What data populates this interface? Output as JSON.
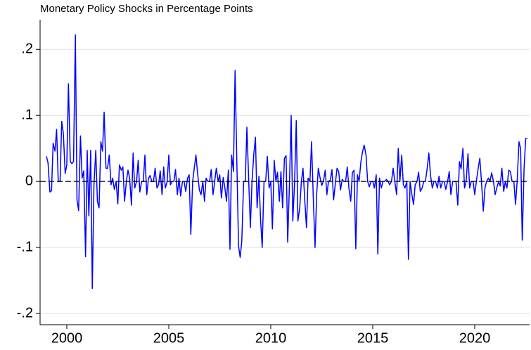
{
  "chart_data": {
    "type": "line",
    "title": "Monetary Policy Shocks in Percentage Points",
    "x": [
      1999,
      1999.08,
      1999.17,
      1999.25,
      1999.33,
      1999.42,
      1999.5,
      1999.58,
      1999.67,
      1999.75,
      1999.83,
      1999.92,
      2000,
      2000.08,
      2000.17,
      2000.25,
      2000.33,
      2000.42,
      2000.5,
      2000.58,
      2000.67,
      2000.75,
      2000.83,
      2000.92,
      2001,
      2001.08,
      2001.17,
      2001.25,
      2001.33,
      2001.42,
      2001.5,
      2001.58,
      2001.67,
      2001.75,
      2001.83,
      2001.92,
      2002,
      2002.08,
      2002.17,
      2002.25,
      2002.33,
      2002.42,
      2002.5,
      2002.58,
      2002.67,
      2002.75,
      2002.83,
      2002.92,
      2003,
      2003.08,
      2003.17,
      2003.25,
      2003.33,
      2003.42,
      2003.5,
      2003.58,
      2003.67,
      2003.75,
      2003.83,
      2003.92,
      2004,
      2004.08,
      2004.17,
      2004.25,
      2004.33,
      2004.42,
      2004.5,
      2004.58,
      2004.67,
      2004.75,
      2004.83,
      2004.92,
      2005,
      2005.08,
      2005.17,
      2005.25,
      2005.33,
      2005.42,
      2005.5,
      2005.58,
      2005.67,
      2005.75,
      2005.83,
      2005.92,
      2006,
      2006.08,
      2006.17,
      2006.25,
      2006.33,
      2006.42,
      2006.5,
      2006.58,
      2006.67,
      2006.75,
      2006.83,
      2006.92,
      2007,
      2007.08,
      2007.17,
      2007.25,
      2007.33,
      2007.42,
      2007.5,
      2007.58,
      2007.67,
      2007.75,
      2007.83,
      2007.92,
      2008,
      2008.08,
      2008.17,
      2008.25,
      2008.33,
      2008.42,
      2008.5,
      2008.58,
      2008.67,
      2008.75,
      2008.83,
      2008.92,
      2009,
      2009.08,
      2009.17,
      2009.25,
      2009.33,
      2009.42,
      2009.5,
      2009.58,
      2009.67,
      2009.75,
      2009.83,
      2009.92,
      2010,
      2010.08,
      2010.17,
      2010.25,
      2010.33,
      2010.42,
      2010.5,
      2010.58,
      2010.67,
      2010.75,
      2010.83,
      2010.92,
      2011,
      2011.08,
      2011.17,
      2011.25,
      2011.33,
      2011.42,
      2011.5,
      2011.58,
      2011.67,
      2011.75,
      2011.83,
      2011.92,
      2012,
      2012.08,
      2012.17,
      2012.25,
      2012.33,
      2012.42,
      2012.5,
      2012.58,
      2012.67,
      2012.75,
      2012.83,
      2012.92,
      2013,
      2013.08,
      2013.17,
      2013.25,
      2013.33,
      2013.42,
      2013.5,
      2013.58,
      2013.67,
      2013.75,
      2013.83,
      2013.92,
      2014,
      2014.08,
      2014.17,
      2014.25,
      2014.33,
      2014.42,
      2014.5,
      2014.58,
      2014.67,
      2014.75,
      2014.83,
      2014.92,
      2015,
      2015.08,
      2015.17,
      2015.25,
      2015.33,
      2015.42,
      2015.5,
      2015.58,
      2015.67,
      2015.75,
      2015.83,
      2015.92,
      2016,
      2016.08,
      2016.17,
      2016.25,
      2016.33,
      2016.42,
      2016.5,
      2016.58,
      2016.67,
      2016.75,
      2016.83,
      2016.92,
      2017,
      2017.08,
      2017.17,
      2017.25,
      2017.33,
      2017.42,
      2017.5,
      2017.58,
      2017.67,
      2017.75,
      2017.83,
      2017.92,
      2018,
      2018.08,
      2018.17,
      2018.25,
      2018.33,
      2018.42,
      2018.5,
      2018.58,
      2018.67,
      2018.75,
      2018.83,
      2018.92,
      2019,
      2019.08,
      2019.17,
      2019.25,
      2019.33,
      2019.42,
      2019.5,
      2019.58,
      2019.67,
      2019.75,
      2019.83,
      2019.92,
      2020,
      2020.08,
      2020.17,
      2020.25,
      2020.33,
      2020.42,
      2020.5,
      2020.58,
      2020.67,
      2020.75,
      2020.83,
      2020.92,
      2021,
      2021.08,
      2021.17,
      2021.25,
      2021.33,
      2021.42,
      2021.5,
      2021.58,
      2021.67,
      2021.75,
      2021.83,
      2021.92,
      2022,
      2022.08,
      2022.17,
      2022.25,
      2022.33,
      2022.42,
      2022.5,
      2022.58
    ],
    "values": [
      0.038,
      0.028,
      -0.016,
      -0.014,
      0.058,
      0.046,
      0.079,
      0.0,
      0.0,
      0.091,
      0.073,
      0.012,
      0.025,
      0.148,
      0.03,
      0.027,
      0.03,
      0.222,
      -0.028,
      -0.044,
      0.069,
      0.005,
      0.016,
      -0.114,
      0.047,
      -0.052,
      0.047,
      -0.162,
      -0.006,
      0.047,
      -0.03,
      -0.04,
      0.06,
      0.046,
      0.105,
      0.02,
      0.02,
      0.04,
      -0.005,
      0.005,
      -0.012,
      0.0,
      -0.034,
      0.025,
      0.017,
      0.022,
      -0.03,
      0.0,
      0.017,
      0.005,
      -0.036,
      0.043,
      -0.01,
      0.0,
      0.032,
      -0.016,
      0.0,
      0.0,
      0.04,
      -0.02,
      0.004,
      0.009,
      0.0,
      0.0,
      0.02,
      -0.01,
      -0.005,
      0.016,
      -0.02,
      0.022,
      -0.01,
      0.0,
      0.04,
      -0.005,
      0.0,
      0.0,
      0.018,
      -0.02,
      0.005,
      -0.022,
      0.0,
      0.0,
      -0.015,
      0.005,
      0.01,
      -0.08,
      0.0,
      0.02,
      0.04,
      0.01,
      -0.013,
      -0.02,
      0.0,
      -0.03,
      0.005,
      0.0,
      0.0,
      0.018,
      -0.02,
      0.0,
      0.02,
      0.0,
      0.01,
      -0.025,
      0.006,
      -0.01,
      -0.03,
      0.017,
      -0.103,
      0.04,
      0.015,
      0.168,
      0.04,
      -0.098,
      -0.115,
      -0.09,
      0.0,
      0.0,
      0.082,
      0.0,
      -0.07,
      0.0,
      0.042,
      0.067,
      -0.04,
      0.008,
      -0.058,
      -0.1,
      0.0,
      0.0,
      0.038,
      -0.01,
      0.0,
      -0.072,
      0.032,
      0.0,
      0.014,
      -0.03,
      0.015,
      -0.04,
      0.035,
      0.039,
      -0.092,
      0.0,
      0.1,
      -0.06,
      0.0,
      0.092,
      -0.06,
      -0.04,
      0.0,
      0.02,
      -0.03,
      -0.07,
      0.005,
      0.0,
      0.06,
      -0.02,
      -0.1,
      -0.02,
      0.02,
      0.005,
      -0.006,
      0.0,
      0.017,
      -0.02,
      0.0,
      0.002,
      0.018,
      -0.028,
      -0.002,
      0.02,
      0.015,
      -0.013,
      0.003,
      0.0,
      0.0,
      0.022,
      -0.01,
      -0.03,
      0.013,
      0.017,
      -0.102,
      0.01,
      0.0,
      0.03,
      0.045,
      0.055,
      0.04,
      0.0,
      -0.008,
      0.0,
      0.0,
      -0.01,
      0.01,
      -0.11,
      0.005,
      -0.01,
      0.0,
      0.0,
      0.003,
      0.0,
      -0.005,
      0.0,
      0.02,
      0.0,
      -0.02,
      0.05,
      0.0,
      0.04,
      -0.005,
      -0.01,
      0.0,
      -0.118,
      0.0,
      -0.02,
      -0.035,
      -0.005,
      0.0,
      0.014,
      -0.015,
      -0.01,
      0.0,
      0.0,
      0.02,
      0.043,
      0.01,
      -0.01,
      0.0,
      0.0,
      -0.01,
      0.008,
      -0.01,
      0.0,
      0.0,
      -0.012,
      0.0,
      0.015,
      -0.02,
      0.0,
      0.0,
      0.0,
      -0.036,
      0.03,
      0.019,
      0.05,
      -0.01,
      0.0,
      0.042,
      -0.01,
      0.0,
      0.0,
      -0.02,
      0.0,
      0.02,
      0.035,
      0.0,
      -0.045,
      -0.01,
      0.0,
      0.005,
      0.0,
      0.013,
      0.0,
      -0.02,
      -0.01,
      0.0,
      -0.007,
      0.02,
      -0.015,
      0.0,
      -0.01,
      0.017,
      0.015,
      0.0,
      0.0,
      -0.035,
      0.0,
      0.06,
      0.05,
      -0.089,
      0.02,
      0.065,
      0.065
    ],
    "color": "#0000ff",
    "xlim": [
      1998.69,
      2022.69
    ],
    "xticks": [
      2000,
      2005,
      2010,
      2015,
      2020
    ],
    "ylim": [
      -0.217,
      0.245
    ],
    "yticks": [
      {
        "value": -0.2,
        "label": "-.2"
      },
      {
        "value": -0.1,
        "label": "-.1"
      },
      0,
      {
        "value": 0.1,
        "label": ".1"
      },
      {
        "value": 0.2,
        "label": ".2"
      }
    ],
    "grid": true,
    "reference_line": {
      "value": 0,
      "color": "#000000"
    }
  }
}
